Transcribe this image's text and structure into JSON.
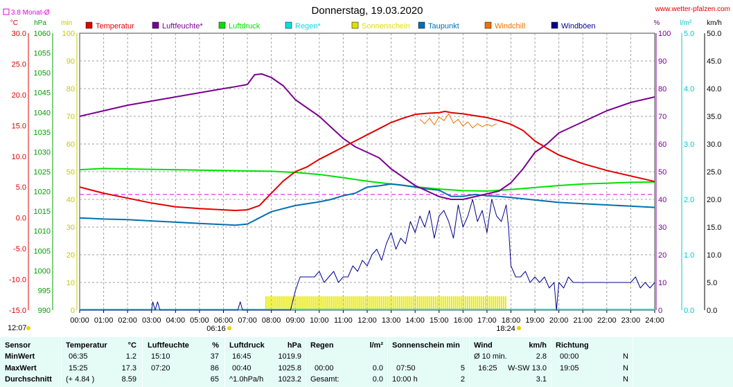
{
  "chart_data": {
    "type": "line",
    "title": "Donnerstag, 19.03.2020",
    "source": "www.wetter-pfalzen.com",
    "monthly_avg_label": "3.8 Monat-Ø",
    "legend": [
      {
        "key": "temp",
        "label": "Temperatur",
        "color": "#e00000"
      },
      {
        "key": "hum",
        "label": "Luftfeuchte*",
        "color": "#7a0090"
      },
      {
        "key": "press",
        "label": "Luftdruck",
        "color": "#00e000"
      },
      {
        "key": "rain",
        "label": "Regen*",
        "color": "#00e0e0"
      },
      {
        "key": "sun",
        "label": "Sonnenschein",
        "color": "#e0e000"
      },
      {
        "key": "dew",
        "label": "Taupunkt",
        "color": "#0070b0"
      },
      {
        "key": "chill",
        "label": "Windchill",
        "color": "#f07000"
      },
      {
        "key": "gust",
        "label": "Windböen",
        "color": "#000090"
      }
    ],
    "axes": {
      "temp": {
        "unit": "°C",
        "min": -15,
        "max": 30,
        "ticks": [
          "-15.0",
          "-10.0",
          "-5.0",
          "0.0",
          "5.0",
          "10.0",
          "15.0",
          "20.0",
          "25.0",
          "30.0"
        ],
        "color": "#e00000"
      },
      "press": {
        "unit": "hPa",
        "min": 990,
        "max": 1060,
        "ticks": [
          "990",
          "995",
          "1000",
          "1005",
          "1010",
          "1015",
          "1020",
          "1025",
          "1030",
          "1035",
          "1040",
          "1045",
          "1050",
          "1055",
          "1060"
        ],
        "color": "#00a000"
      },
      "sunmin": {
        "unit": "min",
        "min": 0,
        "max": 100,
        "ticks": [
          "0",
          "10",
          "20",
          "30",
          "40",
          "50",
          "60",
          "70",
          "80",
          "90",
          "100"
        ],
        "color": "#c8c800"
      },
      "hum": {
        "unit": "%",
        "min": 0,
        "max": 100,
        "ticks": [
          "0",
          "10",
          "20",
          "30",
          "40",
          "50",
          "60",
          "70",
          "80",
          "90",
          "100"
        ],
        "color": "#7a0090"
      },
      "rain": {
        "unit": "l/m²",
        "min": 0,
        "max": 5,
        "ticks": [
          "0.0",
          "1.0",
          "2.0",
          "3.0",
          "4.0",
          "5.0"
        ],
        "color": "#00c8c8"
      },
      "wind": {
        "unit": "km/h",
        "min": 0,
        "max": 50,
        "ticks": [
          "0.0",
          "5.0",
          "10.0",
          "15.0",
          "20.0",
          "25.0",
          "30.0",
          "35.0",
          "40.0",
          "45.0",
          "50.0"
        ],
        "color": "#000000"
      }
    },
    "x_ticks": [
      "00:00",
      "01:00",
      "02:00",
      "03:00",
      "04:00",
      "05:00",
      "06:00",
      "07:00",
      "08:00",
      "09:00",
      "10:00",
      "11:00",
      "12:00",
      "13:00",
      "14:00",
      "15:00",
      "16:00",
      "17:00",
      "18:00",
      "19:00",
      "20:00",
      "21:00",
      "22:00",
      "23:00",
      "24:00"
    ],
    "xlim": [
      0,
      24
    ],
    "annotations": {
      "moonrise": "12:07",
      "sunrise": "06:16",
      "sunset": "18:24",
      "monthly_avg_temp": 3.8
    },
    "series": [
      {
        "name": "Temperatur",
        "key": "temp",
        "axis": "temp",
        "x": [
          0,
          1,
          2,
          3,
          4,
          5,
          6,
          6.5,
          7,
          7.5,
          8,
          8.5,
          9,
          9.5,
          10,
          10.5,
          11,
          11.5,
          12,
          12.5,
          13,
          13.5,
          14,
          14.5,
          15,
          15.25,
          15.5,
          16,
          16.5,
          17,
          17.5,
          18,
          18.5,
          19,
          19.5,
          20,
          21,
          22,
          23,
          24
        ],
        "y": [
          5.0,
          4.0,
          3.2,
          2.4,
          1.8,
          1.5,
          1.3,
          1.2,
          1.3,
          2.0,
          4.0,
          6.0,
          7.5,
          8.3,
          9.5,
          10.5,
          11.5,
          12.5,
          13.5,
          14.5,
          15.5,
          16.2,
          16.8,
          17.0,
          17.1,
          17.3,
          17.1,
          16.9,
          16.6,
          16.3,
          15.8,
          15.2,
          14.2,
          12.5,
          11.3,
          10.2,
          8.8,
          7.7,
          6.8,
          5.9
        ]
      },
      {
        "name": "Luftfeuchte*",
        "key": "hum",
        "axis": "hum",
        "x": [
          0,
          1,
          2,
          3,
          4,
          5,
          6,
          6.5,
          7,
          7.3,
          7.6,
          8,
          8.5,
          9,
          9.5,
          10,
          10.5,
          11,
          11.5,
          12,
          12.5,
          13,
          13.5,
          14,
          14.5,
          15,
          15.5,
          16,
          16.5,
          17,
          17.5,
          18,
          18.5,
          19,
          19.5,
          20,
          21,
          22,
          23,
          24
        ],
        "y": [
          70,
          72,
          74,
          75.5,
          77,
          78.5,
          80,
          80.7,
          81.5,
          85,
          85.3,
          84,
          81,
          76,
          73,
          70,
          66,
          62,
          59,
          57,
          55,
          51,
          48,
          45,
          43,
          41,
          40,
          40,
          41,
          42,
          43,
          46,
          51,
          57,
          60,
          64,
          68,
          72,
          75,
          77
        ]
      },
      {
        "name": "Luftdruck",
        "key": "press",
        "axis": "press",
        "x": [
          0,
          1,
          2,
          3,
          4,
          5,
          6,
          7,
          8,
          9,
          10,
          11,
          12,
          13,
          14,
          15,
          16,
          17,
          18,
          19,
          20,
          21,
          22,
          23,
          24
        ],
        "y": [
          1025.5,
          1025.8,
          1025.7,
          1025.6,
          1025.5,
          1025.4,
          1025.3,
          1025.2,
          1025.1,
          1024.8,
          1024.3,
          1023.5,
          1022.6,
          1021.9,
          1021.2,
          1020.6,
          1020.2,
          1020.1,
          1020.5,
          1021.0,
          1021.5,
          1021.9,
          1022.1,
          1022.3,
          1022.4
        ]
      },
      {
        "name": "Taupunkt",
        "key": "dew",
        "axis": "temp",
        "x": [
          0,
          1,
          2,
          3,
          4,
          5,
          6,
          6.5,
          7,
          7.5,
          8,
          8.5,
          9,
          9.5,
          10,
          10.5,
          11,
          11.5,
          12,
          12.5,
          13,
          13.5,
          14,
          14.5,
          15,
          15.5,
          16,
          16.5,
          17,
          17.5,
          18,
          19,
          20,
          21,
          22,
          23,
          24
        ],
        "y": [
          0.0,
          -0.2,
          -0.3,
          -0.5,
          -0.7,
          -0.9,
          -1.1,
          -1.2,
          -1.0,
          0.0,
          1.0,
          1.5,
          2.0,
          2.3,
          2.6,
          3.0,
          3.6,
          4.0,
          5.0,
          5.2,
          5.5,
          5.3,
          5.0,
          4.7,
          4.5,
          3.5,
          3.5,
          3.8,
          3.6,
          3.5,
          3.3,
          2.9,
          2.5,
          2.3,
          2.1,
          1.9,
          1.7
        ]
      },
      {
        "name": "Windchill",
        "key": "chill",
        "axis": "temp",
        "x": [
          14.2,
          14.4,
          14.6,
          14.8,
          15,
          15.2,
          15.4,
          15.6,
          15.8,
          16,
          16.2,
          16.4,
          16.6,
          16.8,
          17,
          17.2,
          17.4
        ],
        "y": [
          16.0,
          15.3,
          16.2,
          15.1,
          16.4,
          15.8,
          16.9,
          15.4,
          16.0,
          14.9,
          15.6,
          14.6,
          15.3,
          14.8,
          15.2,
          14.9,
          15.3
        ]
      },
      {
        "name": "Windböen",
        "key": "gust",
        "axis": "wind",
        "x": [
          0,
          3,
          3.05,
          3.15,
          3.25,
          3.35,
          3.4,
          6.6,
          6.7,
          6.8,
          6.9,
          8.8,
          9.0,
          9.2,
          9.4,
          9.6,
          9.8,
          10.0,
          10.2,
          10.4,
          10.6,
          10.8,
          11.0,
          11.2,
          11.4,
          11.6,
          11.8,
          12.0,
          12.2,
          12.4,
          12.6,
          12.8,
          13.0,
          13.2,
          13.4,
          13.6,
          13.8,
          14.0,
          14.2,
          14.4,
          14.6,
          14.8,
          15.0,
          15.2,
          15.4,
          15.6,
          15.8,
          16.0,
          16.2,
          16.4,
          16.6,
          16.8,
          17.0,
          17.2,
          17.4,
          17.6,
          17.8,
          17.9,
          18.0,
          18.2,
          18.4,
          18.6,
          18.8,
          19.0,
          19.2,
          19.4,
          19.6,
          19.8,
          19.9,
          20.0,
          20.2,
          20.4,
          20.6,
          20.8,
          21.0,
          22.0,
          23.0,
          23.2,
          23.4,
          23.6,
          23.8,
          24.0
        ],
        "y": [
          0,
          0,
          1.5,
          0,
          1.5,
          0,
          0,
          0,
          1.5,
          0,
          0,
          0,
          3.5,
          6,
          6,
          6,
          6,
          7,
          5,
          6,
          7,
          5,
          6,
          6,
          8,
          7,
          9,
          8,
          10,
          11,
          9,
          12,
          14,
          11,
          13,
          12,
          16,
          14,
          17,
          15,
          18,
          13,
          17,
          18,
          16,
          13,
          19,
          15,
          17,
          20,
          16,
          18,
          14,
          20,
          17,
          16,
          19,
          15,
          8,
          6,
          6,
          7,
          5,
          6,
          5,
          6,
          4,
          5,
          0,
          5,
          4,
          6,
          5,
          5,
          5,
          5,
          5,
          6,
          4,
          5,
          4,
          5
        ]
      }
    ],
    "sunshine_bars": {
      "start": 7.75,
      "end": 17.8,
      "value": 5
    },
    "rain_total": 0.0
  },
  "stats": {
    "headers": {
      "sensor": "Sensor",
      "temp": "Temperatur",
      "temp_unit": "°C",
      "hum": "Luftfeuchte",
      "hum_unit": "%",
      "press": "Luftdruck",
      "press_unit": "hPa",
      "rain": "Regen",
      "rain_unit": "l/m²",
      "sun": "Sonnenschein min",
      "wind": "Wind",
      "wind_unit": "km/h",
      "dir": "Richtung"
    },
    "rows": [
      {
        "label": "MinWert",
        "temp_t": "06:35",
        "temp_v": "1.2",
        "hum_t": "15:10",
        "hum_v": "37",
        "press_t": "16:45",
        "press_v": "1019.9",
        "rain_t": "",
        "rain_v": "",
        "sun_t": "",
        "sun_v": "",
        "wind_t": "Ø 10 min.",
        "wind_v": "2.8",
        "dir_t": "00:00",
        "dir_v": "N"
      },
      {
        "label": "MaxWert",
        "temp_t": "15:25",
        "temp_v": "17.3",
        "hum_t": "07:20",
        "hum_v": "86",
        "press_t": "00:40",
        "press_v": "1025.8",
        "rain_t": "00:00",
        "rain_v": "0.0",
        "sun_t": "07:50",
        "sun_v": "5",
        "wind_t": "16:25",
        "wind_v": "W-SW 13.0",
        "dir_t": "19:05",
        "dir_v": "N"
      },
      {
        "label": "Durchschnitt",
        "temp_t": "(+ 4.84 )",
        "temp_v": "8.59",
        "hum_t": "",
        "hum_v": "65",
        "press_t": "^1.0hPa/h",
        "press_v": "1023.2",
        "rain_t": "Gesamt:",
        "rain_v": "0.0",
        "sun_t": "10:00 h",
        "sun_v": "2",
        "wind_t": "",
        "wind_v": "3.1",
        "dir_t": "",
        "dir_v": "N"
      }
    ]
  }
}
